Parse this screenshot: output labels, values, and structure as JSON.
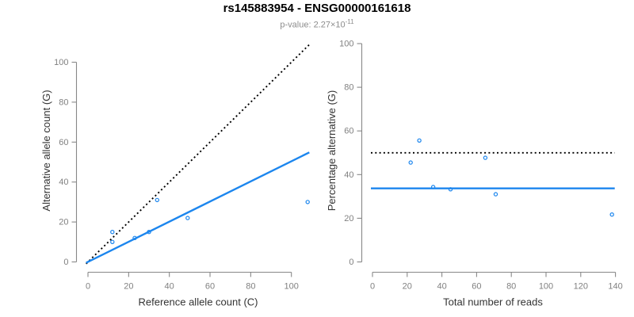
{
  "title": "rs145883954 - ENSG00000161618",
  "subtitle": {
    "base": "p-value: 2.27×10",
    "exponent": "-11"
  },
  "colors": {
    "point_blue": "#1C86EE",
    "line_blue": "#1C86EE",
    "dotted_black": "#000000",
    "axis_gray": "#888888",
    "tick_label_gray": "#808080",
    "axis_title_gray": "#333333",
    "subtitle_gray": "#8C8C8C",
    "background": "#FFFFFF"
  },
  "chart_data": [
    {
      "id": "allele-counts",
      "type": "scatter",
      "xlabel": "Reference allele count (C)",
      "ylabel": "Alternative allele count (G)",
      "xticks": [
        0,
        20,
        40,
        60,
        80,
        100
      ],
      "yticks": [
        0,
        20,
        40,
        60,
        80,
        100
      ],
      "xlim": [
        0,
        108
      ],
      "ylim": [
        0,
        108
      ],
      "grid": false,
      "legend": "none",
      "marker": "open-circle",
      "points": [
        [
          12,
          15
        ],
        [
          12,
          10
        ],
        [
          23,
          12
        ],
        [
          30,
          15
        ],
        [
          34,
          31
        ],
        [
          49,
          22
        ],
        [
          108,
          30
        ]
      ],
      "lines": [
        {
          "name": "identity-line",
          "style": "dotted",
          "color": "#000000",
          "slope": 1,
          "intercept": 0
        },
        {
          "name": "fitted-ratio-line",
          "style": "solid",
          "color": "#1C86EE",
          "slope": 0.504,
          "intercept": 0
        }
      ]
    },
    {
      "id": "percentage-alternative",
      "type": "scatter",
      "xlabel": "Total number of reads",
      "ylabel": "Percentage alternative (G)",
      "xticks": [
        0,
        20,
        40,
        60,
        80,
        100,
        120,
        140
      ],
      "yticks": [
        0,
        20,
        40,
        60,
        80,
        100
      ],
      "xlim": [
        0,
        140
      ],
      "ylim": [
        0,
        100
      ],
      "grid": false,
      "legend": "none",
      "marker": "open-circle",
      "points": [
        [
          27,
          55.6
        ],
        [
          22,
          45.5
        ],
        [
          35,
          34.3
        ],
        [
          45,
          33.3
        ],
        [
          65,
          47.7
        ],
        [
          71,
          31
        ],
        [
          138,
          21.7
        ]
      ],
      "lines": [
        {
          "name": "fifty-percent-line",
          "style": "dotted",
          "color": "#000000",
          "slope": 0,
          "intercept": 50
        },
        {
          "name": "mean-percentage-line",
          "style": "solid",
          "color": "#1C86EE",
          "slope": 0,
          "intercept": 33.7
        }
      ]
    }
  ]
}
